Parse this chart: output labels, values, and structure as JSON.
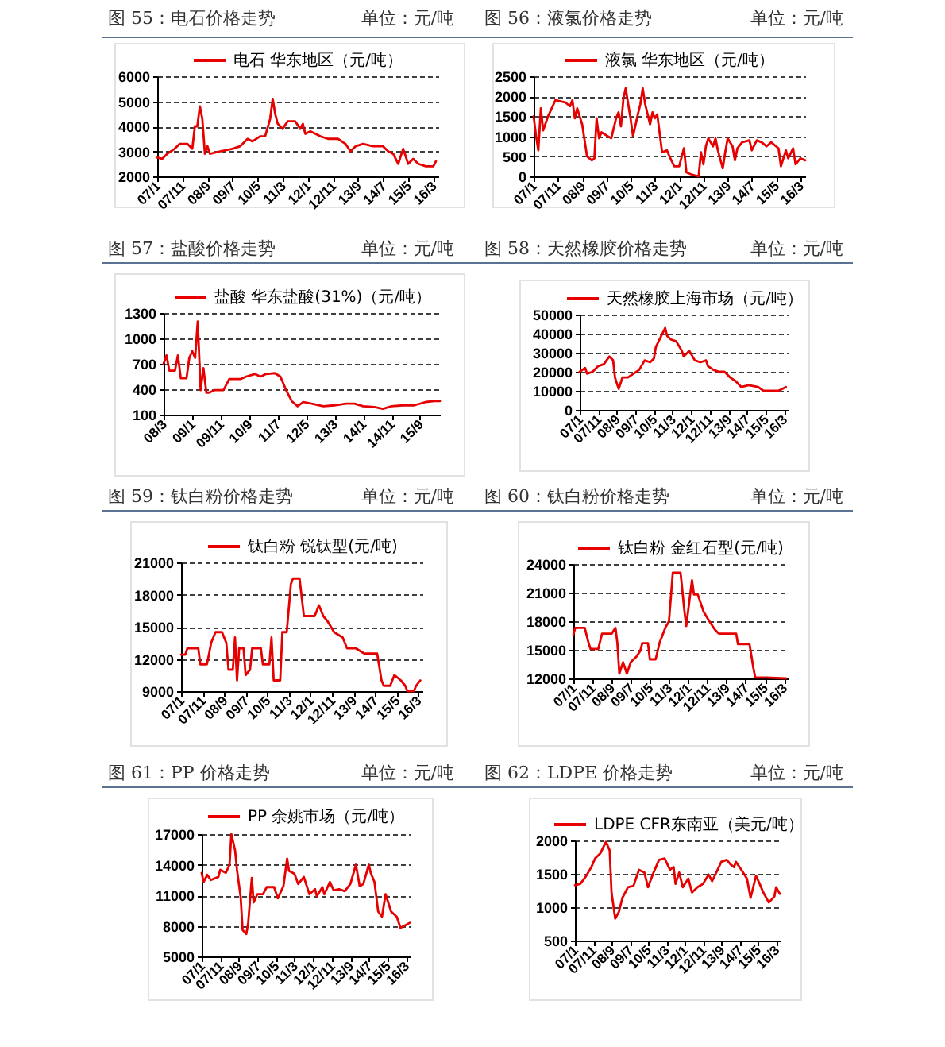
{
  "chart_data": [
    {
      "type": "line",
      "title": "图 55：电石价格走势",
      "subtitle": "单位：元/吨",
      "x": [
        "2007-01",
        "2007-03",
        "2007-05",
        "2007-08",
        "2007-10",
        "2008-01",
        "2008-03",
        "2008-04",
        "2008-05",
        "2008-06",
        "2008-07",
        "2008-08",
        "2008-09",
        "2008-10",
        "2009-02",
        "2009-07",
        "2009-10",
        "2010-01",
        "2010-03",
        "2010-06",
        "2010-08",
        "2010-10",
        "2010-11",
        "2010-12",
        "2011-01",
        "2011-03",
        "2011-05",
        "2011-08",
        "2011-10",
        "2011-11",
        "2011-12",
        "2012-02",
        "2012-06",
        "2012-09",
        "2013-01",
        "2013-04",
        "2013-06",
        "2013-08",
        "2013-11",
        "2014-03",
        "2014-07",
        "2014-09",
        "2014-11",
        "2015-01",
        "2015-03",
        "2015-04",
        "2015-05",
        "2015-07",
        "2015-09",
        "2015-12",
        "2016-03",
        "2016-04"
      ],
      "series": [
        {
          "name": "电石 华东地区（元/吨）",
          "color": "#e60000",
          "values": [
            2750,
            2700,
            2900,
            3100,
            3300,
            3300,
            3100,
            4000,
            4000,
            4800,
            4300,
            2900,
            3200,
            2900,
            3000,
            3100,
            3200,
            3500,
            3400,
            3600,
            3600,
            4300,
            5100,
            4500,
            4100,
            3900,
            4200,
            4200,
            3900,
            4100,
            3700,
            3800,
            3600,
            3500,
            3500,
            3300,
            3000,
            3200,
            3300,
            3200,
            3200,
            3000,
            2900,
            2500,
            3100,
            2800,
            2500,
            2700,
            2500,
            2400,
            2400,
            2600
          ]
        }
      ],
      "xlim": [
        "2007-01",
        "2016-05"
      ],
      "xticks": [
        {
          "value": "2007-01",
          "label": "07/1"
        },
        {
          "value": "2007-11",
          "label": "07/11"
        },
        {
          "value": "2008-09",
          "label": "08/9"
        },
        {
          "value": "2009-07",
          "label": "09/7"
        },
        {
          "value": "2010-05",
          "label": "10/5"
        },
        {
          "value": "2011-03",
          "label": "11/3"
        },
        {
          "value": "2012-01",
          "label": "12/1"
        },
        {
          "value": "2012-11",
          "label": "12/11"
        },
        {
          "value": "2013-09",
          "label": "13/9"
        },
        {
          "value": "2014-07",
          "label": "14/7"
        },
        {
          "value": "2015-05",
          "label": "15/5"
        },
        {
          "value": "2016-03",
          "label": "16/3"
        }
      ],
      "ylim": [
        2000,
        6000
      ],
      "yticks": [
        2000,
        3000,
        4000,
        5000,
        6000
      ],
      "grid": "y",
      "legend": "top"
    },
    {
      "type": "line",
      "title": "图 56：液氯价格走势",
      "subtitle": "单位：元/吨",
      "x": [
        "2007-01",
        "2007-02",
        "2007-03",
        "2007-04",
        "2007-05",
        "2007-07",
        "2007-10",
        "2008-02",
        "2008-04",
        "2008-05",
        "2008-06",
        "2008-07",
        "2008-09",
        "2008-11",
        "2009-01",
        "2009-02",
        "2009-03",
        "2009-04",
        "2009-05",
        "2009-09",
        "2009-11",
        "2009-12",
        "2010-01",
        "2010-02",
        "2010-03",
        "2010-05",
        "2010-06",
        "2010-08",
        "2010-09",
        "2010-10",
        "2010-11",
        "2011-01",
        "2011-02",
        "2011-03",
        "2011-04",
        "2011-06",
        "2011-08",
        "2011-09",
        "2011-11",
        "2012-01",
        "2012-03",
        "2012-04",
        "2012-06",
        "2012-09",
        "2012-10",
        "2012-11",
        "2012-12",
        "2013-01",
        "2013-03",
        "2013-04",
        "2013-05",
        "2013-07",
        "2013-08",
        "2013-09",
        "2013-11",
        "2013-12",
        "2014-01",
        "2014-03",
        "2014-06",
        "2014-07",
        "2014-09",
        "2014-11",
        "2015-01",
        "2015-03",
        "2015-06",
        "2015-07",
        "2015-08",
        "2015-09",
        "2015-10",
        "2015-12",
        "2016-01",
        "2016-03",
        "2016-05"
      ],
      "series": [
        {
          "name": "液氯 华东地区（元/吨）",
          "color": "#e60000",
          "values": [
            1500,
            1000,
            650,
            1700,
            1150,
            1500,
            1900,
            1850,
            1750,
            1900,
            1450,
            1700,
            1300,
            500,
            400,
            450,
            1450,
            950,
            1100,
            950,
            1450,
            1600,
            1250,
            1950,
            2200,
            1450,
            1000,
            1550,
            1800,
            2200,
            1800,
            1300,
            1600,
            1450,
            1550,
            600,
            650,
            500,
            250,
            250,
            700,
            100,
            50,
            0,
            600,
            300,
            750,
            950,
            750,
            950,
            650,
            200,
            600,
            950,
            750,
            400,
            700,
            850,
            900,
            650,
            900,
            850,
            750,
            850,
            700,
            250,
            450,
            650,
            450,
            700,
            300,
            450,
            400
          ]
        }
      ],
      "xlim": [
        "2007-01",
        "2016-05"
      ],
      "xticks": [
        {
          "value": "2007-01",
          "label": "07/1"
        },
        {
          "value": "2007-11",
          "label": "07/11"
        },
        {
          "value": "2008-09",
          "label": "08/9"
        },
        {
          "value": "2009-07",
          "label": "09/7"
        },
        {
          "value": "2010-05",
          "label": "10/5"
        },
        {
          "value": "2011-03",
          "label": "11/3"
        },
        {
          "value": "2012-01",
          "label": "12/1"
        },
        {
          "value": "2012-11",
          "label": "12/11"
        },
        {
          "value": "2013-09",
          "label": "13/9"
        },
        {
          "value": "2014-07",
          "label": "14/7"
        },
        {
          "value": "2015-05",
          "label": "15/5"
        },
        {
          "value": "2016-03",
          "label": "16/3"
        }
      ],
      "ylim": [
        0,
        2500
      ],
      "yticks": [
        0,
        500,
        1000,
        1500,
        2000,
        2500
      ],
      "grid": "y",
      "legend": "top"
    },
    {
      "type": "line",
      "title": "图 57：盐酸价格走势",
      "subtitle": "单位：元/吨",
      "x": [
        "2008-03",
        "2008-04",
        "2008-05",
        "2008-07",
        "2008-08",
        "2008-09",
        "2008-11",
        "2008-12",
        "2009-01",
        "2009-02",
        "2009-03",
        "2009-04",
        "2009-05",
        "2009-06",
        "2009-07",
        "2009-09",
        "2009-12",
        "2010-02",
        "2010-06",
        "2010-08",
        "2010-11",
        "2011-01",
        "2011-03",
        "2011-06",
        "2011-08",
        "2011-10",
        "2011-12",
        "2012-02",
        "2012-04",
        "2012-07",
        "2012-11",
        "2013-03",
        "2013-07",
        "2013-10",
        "2014-01",
        "2014-05",
        "2014-08",
        "2014-11",
        "2015-03",
        "2015-07",
        "2015-11",
        "2016-02",
        "2016-04"
      ],
      "series": [
        {
          "name": "盐酸 华东盐酸(31%)（元/吨）",
          "color": "#e60000",
          "values": [
            700,
            800,
            620,
            620,
            800,
            530,
            530,
            770,
            850,
            770,
            1200,
            390,
            650,
            360,
            360,
            390,
            390,
            520,
            520,
            550,
            580,
            550,
            580,
            590,
            550,
            390,
            260,
            200,
            250,
            230,
            200,
            210,
            230,
            230,
            200,
            190,
            170,
            200,
            210,
            210,
            250,
            260,
            260
          ]
        }
      ],
      "xlim": [
        "2008-03",
        "2016-04"
      ],
      "xticks": [
        {
          "value": "2008-03",
          "label": "08/3"
        },
        {
          "value": "2009-01",
          "label": "09/1"
        },
        {
          "value": "2009-11",
          "label": "09/11"
        },
        {
          "value": "2010-09",
          "label": "10/9"
        },
        {
          "value": "2011-07",
          "label": "11/7"
        },
        {
          "value": "2012-05",
          "label": "12/5"
        },
        {
          "value": "2013-03",
          "label": "13/3"
        },
        {
          "value": "2014-01",
          "label": "14/1"
        },
        {
          "value": "2014-11",
          "label": "14/11"
        },
        {
          "value": "2015-09",
          "label": "15/9"
        }
      ],
      "ylim": [
        100,
        1300
      ],
      "yticks": [
        100,
        400,
        700,
        1000,
        1300
      ],
      "grid": "y",
      "legend": "top"
    },
    {
      "type": "line",
      "title": "图 58：天然橡胶价格走势",
      "subtitle": "单位：元/吨",
      "x": [
        "2007-01",
        "2007-04",
        "2007-05",
        "2007-08",
        "2007-11",
        "2008-02",
        "2008-05",
        "2008-07",
        "2008-08",
        "2008-10",
        "2008-12",
        "2009-03",
        "2009-06",
        "2009-09",
        "2009-12",
        "2010-03",
        "2010-05",
        "2010-06",
        "2010-09",
        "2010-11",
        "2010-12",
        "2011-02",
        "2011-05",
        "2011-08",
        "2011-09",
        "2011-12",
        "2012-03",
        "2012-06",
        "2012-09",
        "2012-10",
        "2013-01",
        "2013-04",
        "2013-07",
        "2013-10",
        "2014-01",
        "2014-04",
        "2014-08",
        "2015-01",
        "2015-04",
        "2015-08",
        "2015-12",
        "2016-04"
      ],
      "series": [
        {
          "name": "天然橡胶上海市场（元/吨）",
          "color": "#e60000",
          "values": [
            20000,
            22000,
            19000,
            20000,
            23000,
            24000,
            28000,
            26000,
            17000,
            11000,
            17000,
            17000,
            19000,
            21000,
            26000,
            25000,
            27000,
            33000,
            39000,
            43000,
            39000,
            37000,
            36000,
            31000,
            28000,
            31000,
            26000,
            25000,
            26000,
            23000,
            21000,
            20000,
            20000,
            17000,
            15000,
            12000,
            13000,
            12000,
            10000,
            10000,
            10000,
            12000
          ]
        }
      ],
      "xlim": [
        "2007-01",
        "2016-05"
      ],
      "xticks": [
        {
          "value": "2007-01",
          "label": "07/1"
        },
        {
          "value": "2007-11",
          "label": "07/11"
        },
        {
          "value": "2008-09",
          "label": "08/9"
        },
        {
          "value": "2009-07",
          "label": "09/7"
        },
        {
          "value": "2010-05",
          "label": "10/5"
        },
        {
          "value": "2011-03",
          "label": "11/3"
        },
        {
          "value": "2012-01",
          "label": "12/1"
        },
        {
          "value": "2012-11",
          "label": "12/11"
        },
        {
          "value": "2013-09",
          "label": "13/9"
        },
        {
          "value": "2014-07",
          "label": "14/7"
        },
        {
          "value": "2015-05",
          "label": "15/5"
        },
        {
          "value": "2016-03",
          "label": "16/3"
        }
      ],
      "ylim": [
        0,
        50000
      ],
      "yticks": [
        0,
        10000,
        20000,
        30000,
        40000,
        50000
      ],
      "grid": "y",
      "legend": "top"
    },
    {
      "type": "line",
      "title": "图 59：钛白粉价格走势",
      "subtitle": "单位：元/吨",
      "x": [
        "2007-01",
        "2007-03",
        "2007-04",
        "2007-09",
        "2007-10",
        "2008-01",
        "2008-02",
        "2008-03",
        "2008-05",
        "2008-08",
        "2008-10",
        "2008-11",
        "2009-01",
        "2009-02",
        "2009-03",
        "2009-04",
        "2009-06",
        "2009-07",
        "2009-09",
        "2009-10",
        "2010-02",
        "2010-03",
        "2010-06",
        "2010-07",
        "2010-08",
        "2010-11",
        "2010-12",
        "2011-02",
        "2011-04",
        "2011-05",
        "2011-08",
        "2011-10",
        "2012-03",
        "2012-05",
        "2012-07",
        "2012-09",
        "2012-12",
        "2013-04",
        "2013-06",
        "2013-10",
        "2014-02",
        "2014-08",
        "2014-10",
        "2014-11",
        "2015-02",
        "2015-04",
        "2015-07",
        "2015-09",
        "2015-10",
        "2016-01",
        "2016-02",
        "2016-04"
      ],
      "series": [
        {
          "name": "钛白粉 锐钛型(元/吨)",
          "color": "#e60000",
          "values": [
            12400,
            12400,
            13000,
            13000,
            11500,
            11500,
            12500,
            13500,
            14500,
            14500,
            13500,
            11000,
            11000,
            14000,
            10000,
            13000,
            13000,
            10500,
            11000,
            13000,
            13000,
            11500,
            11500,
            14000,
            10000,
            10000,
            14500,
            14500,
            19000,
            19500,
            19500,
            16000,
            16000,
            17000,
            16000,
            15500,
            14500,
            14000,
            13000,
            13000,
            12500,
            12500,
            10000,
            9500,
            9500,
            10500,
            10000,
            9500,
            9000,
            9000,
            9500,
            10000
          ]
        }
      ],
      "xlim": [
        "2007-01",
        "2016-05"
      ],
      "xticks": [
        {
          "value": "2007-01",
          "label": "07/1"
        },
        {
          "value": "2007-11",
          "label": "07/11"
        },
        {
          "value": "2008-09",
          "label": "08/9"
        },
        {
          "value": "2009-07",
          "label": "09/7"
        },
        {
          "value": "2010-05",
          "label": "10/5"
        },
        {
          "value": "2011-03",
          "label": "11/3"
        },
        {
          "value": "2012-01",
          "label": "12/1"
        },
        {
          "value": "2012-11",
          "label": "12/11"
        },
        {
          "value": "2013-09",
          "label": "13/9"
        },
        {
          "value": "2014-07",
          "label": "14/7"
        },
        {
          "value": "2015-05",
          "label": "15/5"
        },
        {
          "value": "2016-03",
          "label": "16/3"
        }
      ],
      "ylim": [
        9000,
        21000
      ],
      "yticks": [
        9000,
        12000,
        15000,
        18000,
        21000
      ],
      "grid": "y",
      "legend": "top"
    },
    {
      "type": "line",
      "title": "图 60：钛白粉价格走势",
      "subtitle": "单位：元/吨",
      "x": [
        "2007-01",
        "2007-02",
        "2007-07",
        "2007-09",
        "2007-10",
        "2008-02",
        "2008-04",
        "2008-09",
        "2008-11",
        "2008-12",
        "2009-01",
        "2009-03",
        "2009-05",
        "2009-07",
        "2009-10",
        "2009-12",
        "2010-01",
        "2010-04",
        "2010-05",
        "2010-08",
        "2010-10",
        "2011-01",
        "2011-03",
        "2011-05",
        "2011-09",
        "2011-11",
        "2011-12",
        "2012-02",
        "2012-03",
        "2012-04",
        "2012-06",
        "2012-09",
        "2012-12",
        "2013-03",
        "2013-05",
        "2014-02",
        "2014-03",
        "2014-09",
        "2014-11",
        "2014-12",
        "2015-06",
        "2016-04"
      ],
      "series": [
        {
          "name": "钛白粉 金红石型(元/吨)",
          "color": "#e60000",
          "values": [
            16600,
            17300,
            17300,
            15700,
            15100,
            15100,
            16700,
            16700,
            17300,
            15700,
            12500,
            13700,
            12500,
            13700,
            14300,
            14900,
            15700,
            15700,
            14000,
            14000,
            15700,
            17300,
            18000,
            23100,
            23100,
            19100,
            17500,
            20800,
            22300,
            20800,
            20800,
            19000,
            18000,
            17100,
            16700,
            16700,
            15600,
            15600,
            13100,
            12100,
            12100,
            12000
          ]
        }
      ],
      "xlim": [
        "2007-01",
        "2016-05"
      ],
      "xticks": [
        {
          "value": "2007-01",
          "label": "07/1"
        },
        {
          "value": "2007-11",
          "label": "07/11"
        },
        {
          "value": "2008-09",
          "label": "08/9"
        },
        {
          "value": "2009-07",
          "label": "09/7"
        },
        {
          "value": "2010-05",
          "label": "10/5"
        },
        {
          "value": "2011-03",
          "label": "11/3"
        },
        {
          "value": "2012-01",
          "label": "12/1"
        },
        {
          "value": "2012-11",
          "label": "12/11"
        },
        {
          "value": "2013-09",
          "label": "13/9"
        },
        {
          "value": "2014-07",
          "label": "14/7"
        },
        {
          "value": "2015-05",
          "label": "15/5"
        },
        {
          "value": "2016-03",
          "label": "16/3"
        }
      ],
      "ylim": [
        12000,
        24000
      ],
      "yticks": [
        12000,
        15000,
        18000,
        21000,
        24000
      ],
      "grid": "y",
      "legend": "top"
    },
    {
      "type": "line",
      "title": "图 61：PP 价格走势",
      "subtitle": "单位：元/吨",
      "x": [
        "2007-01",
        "2007-02",
        "2007-04",
        "2007-06",
        "2007-10",
        "2007-11",
        "2008-02",
        "2008-04",
        "2008-05",
        "2008-07",
        "2008-08",
        "2008-10",
        "2008-11",
        "2009-01",
        "2009-02",
        "2009-04",
        "2009-05",
        "2009-07",
        "2009-10",
        "2009-12",
        "2010-04",
        "2010-06",
        "2010-09",
        "2010-11",
        "2010-12",
        "2011-03",
        "2011-05",
        "2011-08",
        "2011-11",
        "2012-02",
        "2012-03",
        "2012-06",
        "2012-07",
        "2012-10",
        "2012-12",
        "2013-03",
        "2013-06",
        "2013-09",
        "2013-12",
        "2014-02",
        "2014-04",
        "2014-07",
        "2014-08",
        "2014-10",
        "2014-12",
        "2015-02",
        "2015-04",
        "2015-07",
        "2015-10",
        "2015-12",
        "2016-02",
        "2016-05"
      ],
      "series": [
        {
          "name": "PP 余姚市场（元/吨）",
          "color": "#e60000",
          "values": [
            13200,
            12300,
            13000,
            12500,
            12800,
            13500,
            13200,
            14000,
            17000,
            15400,
            13500,
            10800,
            7600,
            7200,
            8300,
            12700,
            10300,
            11100,
            11100,
            11800,
            11800,
            10700,
            11900,
            14600,
            13400,
            13100,
            12100,
            12800,
            11100,
            11600,
            10900,
            11800,
            11100,
            12300,
            11500,
            11600,
            11400,
            12100,
            14000,
            11900,
            12100,
            14000,
            13200,
            12300,
            9400,
            8900,
            11100,
            9400,
            8900,
            7800,
            8000,
            8300
          ]
        }
      ],
      "xlim": [
        "2007-01",
        "2016-05"
      ],
      "xticks": [
        {
          "value": "2007-01",
          "label": "07/1"
        },
        {
          "value": "2007-11",
          "label": "07/11"
        },
        {
          "value": "2008-09",
          "label": "08/9"
        },
        {
          "value": "2009-07",
          "label": "09/7"
        },
        {
          "value": "2010-05",
          "label": "10/5"
        },
        {
          "value": "2011-03",
          "label": "11/3"
        },
        {
          "value": "2012-01",
          "label": "12/1"
        },
        {
          "value": "2012-11",
          "label": "12/11"
        },
        {
          "value": "2013-09",
          "label": "13/9"
        },
        {
          "value": "2014-07",
          "label": "14/7"
        },
        {
          "value": "2015-05",
          "label": "15/5"
        },
        {
          "value": "2016-03",
          "label": "16/3"
        }
      ],
      "ylim": [
        5000,
        17000
      ],
      "yticks": [
        5000,
        8000,
        11000,
        14000,
        17000
      ],
      "grid": "y",
      "legend": "top"
    },
    {
      "type": "line",
      "title": "图 62：LDPE 价格走势",
      "subtitle": "单位：元/吨",
      "x": [
        "2007-01",
        "2007-04",
        "2007-07",
        "2007-10",
        "2007-12",
        "2008-03",
        "2008-06",
        "2008-08",
        "2008-09",
        "2008-11",
        "2009-01",
        "2009-03",
        "2009-06",
        "2009-09",
        "2009-12",
        "2010-03",
        "2010-05",
        "2010-08",
        "2010-11",
        "2011-02",
        "2011-05",
        "2011-07",
        "2011-08",
        "2011-10",
        "2011-12",
        "2012-03",
        "2012-05",
        "2012-08",
        "2012-11",
        "2013-02",
        "2013-04",
        "2013-07",
        "2013-09",
        "2013-12",
        "2014-02",
        "2014-04",
        "2014-05",
        "2014-08",
        "2014-11",
        "2015-01",
        "2015-04",
        "2015-06",
        "2015-08",
        "2015-11",
        "2016-02",
        "2016-03",
        "2016-05"
      ],
      "series": [
        {
          "name": "LDPE CFR东南亚（美元/吨）",
          "color": "#e60000",
          "values": [
            1330,
            1350,
            1460,
            1600,
            1730,
            1810,
            1980,
            1850,
            1220,
            830,
            930,
            1140,
            1300,
            1320,
            1560,
            1520,
            1300,
            1520,
            1710,
            1730,
            1560,
            1600,
            1350,
            1520,
            1300,
            1430,
            1220,
            1300,
            1350,
            1490,
            1390,
            1560,
            1680,
            1710,
            1640,
            1600,
            1680,
            1560,
            1430,
            1140,
            1470,
            1350,
            1220,
            1070,
            1160,
            1300,
            1200
          ]
        }
      ],
      "xlim": [
        "2007-01",
        "2016-05"
      ],
      "xticks": [
        {
          "value": "2007-01",
          "label": "07/1"
        },
        {
          "value": "2007-11",
          "label": "07/11"
        },
        {
          "value": "2008-09",
          "label": "08/9"
        },
        {
          "value": "2009-07",
          "label": "09/7"
        },
        {
          "value": "2010-05",
          "label": "10/5"
        },
        {
          "value": "2011-03",
          "label": "11/3"
        },
        {
          "value": "2012-01",
          "label": "12/1"
        },
        {
          "value": "2012-11",
          "label": "12/11"
        },
        {
          "value": "2013-09",
          "label": "13/9"
        },
        {
          "value": "2014-07",
          "label": "14/7"
        },
        {
          "value": "2015-05",
          "label": "15/5"
        },
        {
          "value": "2016-03",
          "label": "16/3"
        }
      ],
      "ylim": [
        500,
        2000
      ],
      "yticks": [
        500,
        1000,
        1500,
        2000
      ],
      "grid": "y",
      "legend": "top"
    }
  ]
}
